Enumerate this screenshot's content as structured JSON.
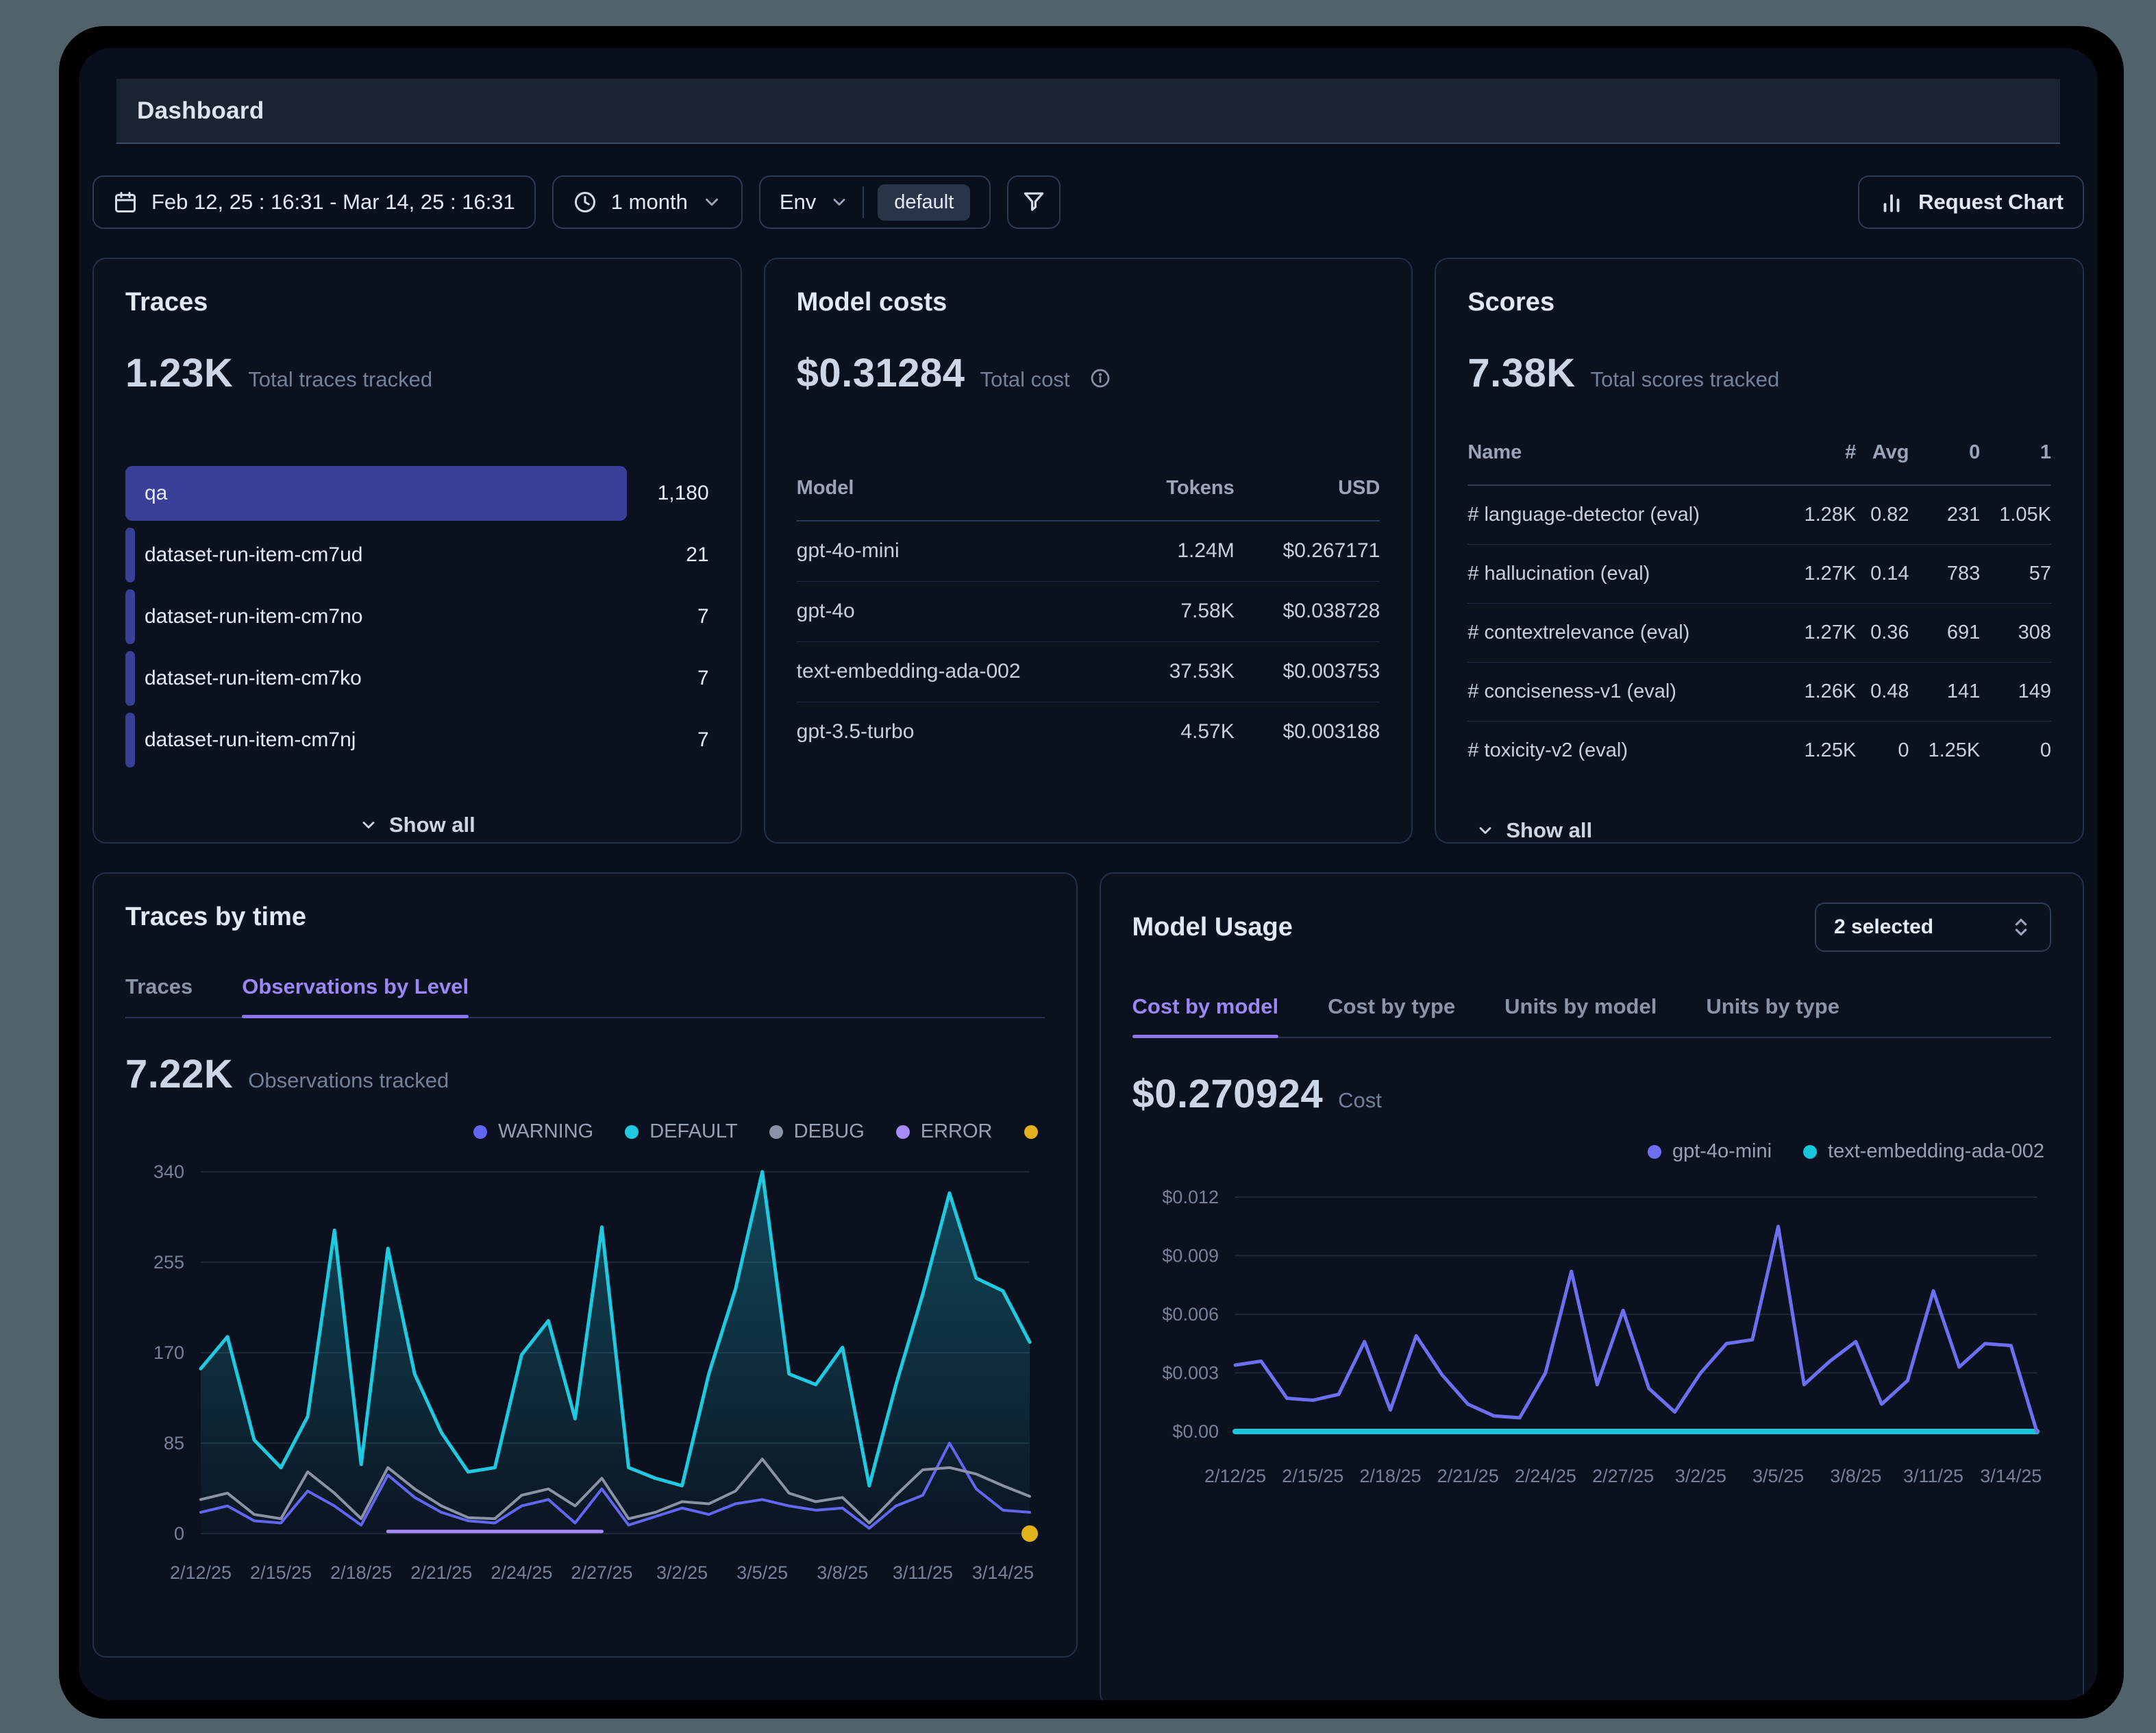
{
  "window": {
    "title": "Dashboard"
  },
  "toolbar": {
    "date_range": "Feb 12, 25 : 16:31 - Mar 14, 25 : 16:31",
    "timeframe": "1 month",
    "env_label": "Env",
    "env_value": "default",
    "request_chart": "Request Chart"
  },
  "traces_card": {
    "title": "Traces",
    "metric": "1.23K",
    "metric_label": "Total traces tracked",
    "items": [
      {
        "label": "qa",
        "value": "1,180",
        "bar_pct": 86
      },
      {
        "label": "dataset-run-item-cm7ud",
        "value": "21",
        "bar_pct": 1.7
      },
      {
        "label": "dataset-run-item-cm7no",
        "value": "7",
        "bar_pct": 1.7
      },
      {
        "label": "dataset-run-item-cm7ko",
        "value": "7",
        "bar_pct": 1.7
      },
      {
        "label": "dataset-run-item-cm7nj",
        "value": "7",
        "bar_pct": 1.7
      }
    ],
    "show_all": "Show all"
  },
  "model_costs_card": {
    "title": "Model costs",
    "metric": "$0.31284",
    "metric_label": "Total cost",
    "columns": [
      "Model",
      "Tokens",
      "USD"
    ],
    "rows": [
      [
        "gpt-4o-mini",
        "1.24M",
        "$0.267171"
      ],
      [
        "gpt-4o",
        "7.58K",
        "$0.038728"
      ],
      [
        "text-embedding-ada-002",
        "37.53K",
        "$0.003753"
      ],
      [
        "gpt-3.5-turbo",
        "4.57K",
        "$0.003188"
      ]
    ]
  },
  "scores_card": {
    "title": "Scores",
    "metric": "7.38K",
    "metric_label": "Total scores tracked",
    "columns": [
      "Name",
      "#",
      "Avg",
      "0",
      "1"
    ],
    "rows": [
      [
        "# language-detector (eval)",
        "1.28K",
        "0.82",
        "231",
        "1.05K"
      ],
      [
        "# hallucination (eval)",
        "1.27K",
        "0.14",
        "783",
        "57"
      ],
      [
        "# contextrelevance (eval)",
        "1.27K",
        "0.36",
        "691",
        "308"
      ],
      [
        "# conciseness-v1 (eval)",
        "1.26K",
        "0.48",
        "141",
        "149"
      ],
      [
        "# toxicity-v2 (eval)",
        "1.25K",
        "0",
        "1.25K",
        "0"
      ]
    ],
    "show_all": "Show all"
  },
  "traces_by_time_card": {
    "title": "Traces by time",
    "tabs": [
      "Traces",
      "Observations by Level"
    ],
    "active_tab": 1,
    "metric": "7.22K",
    "metric_label": "Observations tracked"
  },
  "model_usage_card": {
    "title": "Model Usage",
    "selected": "2 selected",
    "tabs": [
      "Cost by model",
      "Cost by type",
      "Units by model",
      "Units by type"
    ],
    "active_tab": 0,
    "metric": "$0.270924",
    "metric_label": "Cost"
  },
  "chart_data": [
    {
      "type": "line",
      "title": "Observations by Level",
      "ylim": [
        0,
        340
      ],
      "yticks": [
        0,
        85,
        170,
        255,
        340
      ],
      "ytick_labels": [
        "0",
        "85",
        "170",
        "255",
        "340"
      ],
      "grid": true,
      "legend_position": "top-right",
      "n_points": 32,
      "x_tick_labels": [
        "2/12/25",
        "2/15/25",
        "2/18/25",
        "2/21/25",
        "2/24/25",
        "2/27/25",
        "3/2/25",
        "3/5/25",
        "3/8/25",
        "3/11/25",
        "3/14/25"
      ],
      "x_tick_indices": [
        0,
        3,
        6,
        9,
        12,
        15,
        18,
        21,
        24,
        27,
        30
      ],
      "series": [
        {
          "name": "WARNING",
          "color": "#6366f1",
          "width": 4,
          "values": [
            20,
            26,
            12,
            10,
            40,
            26,
            8,
            55,
            34,
            20,
            12,
            10,
            26,
            32,
            10,
            42,
            8,
            16,
            24,
            18,
            28,
            32,
            26,
            22,
            24,
            5,
            26,
            36,
            85,
            42,
            22,
            20
          ]
        },
        {
          "name": "DEFAULT",
          "color": "#1fc9e0",
          "width": 5,
          "fill": true,
          "values": [
            155,
            185,
            88,
            62,
            110,
            285,
            65,
            268,
            150,
            95,
            58,
            62,
            168,
            200,
            108,
            288,
            62,
            52,
            45,
            150,
            230,
            340,
            150,
            140,
            175,
            45,
            140,
            225,
            320,
            240,
            228,
            180
          ]
        },
        {
          "name": "DEBUG",
          "color": "#8a93a5",
          "width": 4,
          "values": [
            32,
            38,
            18,
            14,
            58,
            38,
            14,
            62,
            42,
            26,
            15,
            14,
            36,
            42,
            26,
            52,
            14,
            20,
            30,
            28,
            40,
            70,
            38,
            30,
            34,
            10,
            36,
            60,
            62,
            56,
            45,
            35
          ]
        },
        {
          "name": "ERROR",
          "color": "#a78bfa",
          "width": 5,
          "values": [
            null,
            null,
            null,
            null,
            null,
            null,
            null,
            2,
            2,
            2,
            2,
            2,
            2,
            2,
            2,
            2,
            null,
            null,
            null,
            null,
            null,
            null,
            null,
            null,
            null,
            null,
            null,
            null,
            null,
            null,
            null,
            null
          ]
        },
        {
          "name": "",
          "color": "#e3b31d",
          "dot_only": true,
          "dot_r": 12,
          "values": [
            null,
            null,
            null,
            null,
            null,
            null,
            null,
            null,
            null,
            null,
            null,
            null,
            null,
            null,
            null,
            null,
            null,
            null,
            null,
            null,
            null,
            null,
            null,
            null,
            null,
            null,
            null,
            null,
            null,
            null,
            null,
            0
          ]
        }
      ]
    },
    {
      "type": "line",
      "title": "Cost by model",
      "ylim": [
        0,
        0.012
      ],
      "yticks": [
        0,
        0.003,
        0.006,
        0.009,
        0.012
      ],
      "ytick_labels": [
        "$0.00",
        "$0.003",
        "$0.006",
        "$0.009",
        "$0.012"
      ],
      "grid": true,
      "legend_position": "top-right",
      "n_points": 32,
      "x_tick_labels": [
        "2/12/25",
        "2/15/25",
        "2/18/25",
        "2/21/25",
        "2/24/25",
        "2/27/25",
        "3/2/25",
        "3/5/25",
        "3/8/25",
        "3/11/25",
        "3/14/25"
      ],
      "x_tick_indices": [
        0,
        3,
        6,
        9,
        12,
        15,
        18,
        21,
        24,
        27,
        30
      ],
      "series": [
        {
          "name": "gpt-4o-mini",
          "color": "#6c70f0",
          "width": 5,
          "values": [
            0.0034,
            0.0036,
            0.0017,
            0.0016,
            0.0019,
            0.0046,
            0.0011,
            0.0049,
            0.0029,
            0.0014,
            0.0008,
            0.0007,
            0.003,
            0.0082,
            0.0024,
            0.0062,
            0.0022,
            0.001,
            0.003,
            0.0045,
            0.0047,
            0.0105,
            0.0024,
            0.0036,
            0.0046,
            0.0014,
            0.0026,
            0.0072,
            0.0033,
            0.0045,
            0.0044,
            0.0
          ]
        },
        {
          "name": "text-embedding-ada-002",
          "color": "#17c6da",
          "width": 8,
          "values": [
            0,
            0,
            0,
            0,
            0,
            0,
            0,
            0,
            0,
            0,
            0,
            0,
            0,
            0,
            0,
            0,
            0,
            0,
            0,
            0,
            0,
            0,
            0,
            0,
            0,
            0,
            0,
            0,
            0,
            0,
            0,
            0
          ]
        }
      ]
    }
  ]
}
